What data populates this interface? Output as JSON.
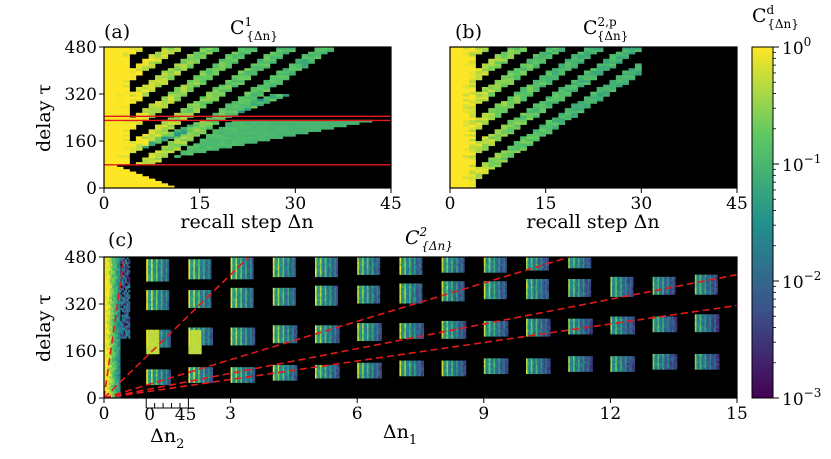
{
  "chart_data": [
    {
      "id": "a",
      "type": "heatmap",
      "panel_label": "(a)",
      "title": "C¹{Δn}",
      "title_main": "C",
      "title_sup": "1",
      "title_sub": "{Δn}",
      "xlabel": "recall step Δn",
      "ylabel": "delay τ",
      "xlim": [
        0,
        45
      ],
      "ylim": [
        0,
        480
      ],
      "xticks": [
        0,
        15,
        30,
        45
      ],
      "yticks": [
        0,
        160,
        320,
        480
      ],
      "horizontal_lines": [
        79,
        230,
        244
      ],
      "line_color": "#e31a1c"
    },
    {
      "id": "b",
      "type": "heatmap",
      "panel_label": "(b)",
      "title": "C^{2,p}{Δn}",
      "title_main": "C",
      "title_sup": "2,p",
      "title_sub": "{Δn}",
      "xlabel": "recall step Δn",
      "xlim": [
        0,
        45
      ],
      "ylim": [
        0,
        480
      ],
      "xticks": [
        0,
        15,
        30,
        45
      ]
    },
    {
      "id": "c",
      "type": "heatmap",
      "panel_label": "(c)",
      "title": "C²{Δn}",
      "title_main": "C",
      "title_sup": "2",
      "title_sub": "{Δn}",
      "xlabel": "Δn₁",
      "xlabel_main": "Δn",
      "xlabel_sub": "1",
      "ylabel": "delay τ",
      "xlim": [
        0,
        15
      ],
      "ylim": [
        0,
        480
      ],
      "xticks": [
        0,
        3,
        6,
        9,
        12,
        15
      ],
      "yticks": [
        0,
        160,
        320,
        480
      ],
      "inner_axis": {
        "label": "Δn₂",
        "label_main": "Δn",
        "label_sub": "2",
        "ticks": [
          "0",
          "45"
        ],
        "span": [
          1,
          2
        ]
      },
      "dashed_lines": [
        {
          "slope_per_dn1": 1000
        },
        {
          "slope_per_dn1": 140
        },
        {
          "slope_per_dn1": 43.5
        },
        {
          "slope_per_dn1": 28
        },
        {
          "slope_per_dn1": 21
        }
      ],
      "line_color": "#e31a1c"
    }
  ],
  "colorbar": {
    "label": "C^d{Δn}",
    "label_main": "C",
    "label_sup": "d",
    "label_sub": "{Δn}",
    "scale": "log",
    "range": [
      0.001,
      1
    ],
    "ticks": [
      {
        "value": 1,
        "base": "10",
        "exp": "0"
      },
      {
        "value": 0.1,
        "base": "10",
        "exp": "−1"
      },
      {
        "value": 0.01,
        "base": "10",
        "exp": "−2"
      },
      {
        "value": 0.001,
        "base": "10",
        "exp": "−3"
      }
    ],
    "colormap": [
      "#440154",
      "#3b528b",
      "#21918c",
      "#5ec962",
      "#fde725"
    ]
  }
}
